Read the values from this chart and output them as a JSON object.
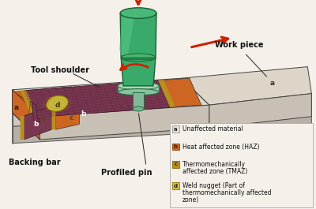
{
  "bg": "#f5f0ea",
  "colors": {
    "wp_top": "#ddd5c8",
    "wp_front": "#c5bdb0",
    "wp_right_face": "#bbb3a8",
    "wp_left_face": "#b0a89d",
    "haz": "#cc6622",
    "weld_dark": "#7a3850",
    "tmaz": "#b89020",
    "nugget": "#c8b840",
    "tool_body": "#3aaa6a",
    "tool_light": "#5acc8a",
    "tool_top": "#4ab878",
    "tool_shoulder": "#8dd8b0",
    "tool_shoulder_rim": "#3a9060",
    "pin": "#90c8a8",
    "backing_top": "#d0c8be",
    "backing_front": "#b8b0a5",
    "arrow_red": "#cc2200",
    "label_color": "#111111"
  },
  "labels": {
    "tool_shoulder": "Tool shoulder",
    "work_piece": "Work piece",
    "backing_bar": "Backing bar",
    "profiled_pin": "Profiled pin"
  },
  "legend": [
    {
      "key": "a",
      "text1": "Unaffected material",
      "text2": "",
      "color": "#e8e0d5",
      "border": "#999999"
    },
    {
      "key": "b",
      "text1": "Heat affected zone (HAZ)",
      "text2": "",
      "color": "#cc6622",
      "border": "#994400"
    },
    {
      "key": "c",
      "text1": "Thermomechanically",
      "text2": "affected zone (TMAZ)",
      "color": "#b89020",
      "border": "#886600"
    },
    {
      "key": "d",
      "text1": "Weld nugget (Part of",
      "text2": "thermomechanically affected",
      "text3": "zone)",
      "color": "#d4c050",
      "border": "#887800"
    }
  ]
}
